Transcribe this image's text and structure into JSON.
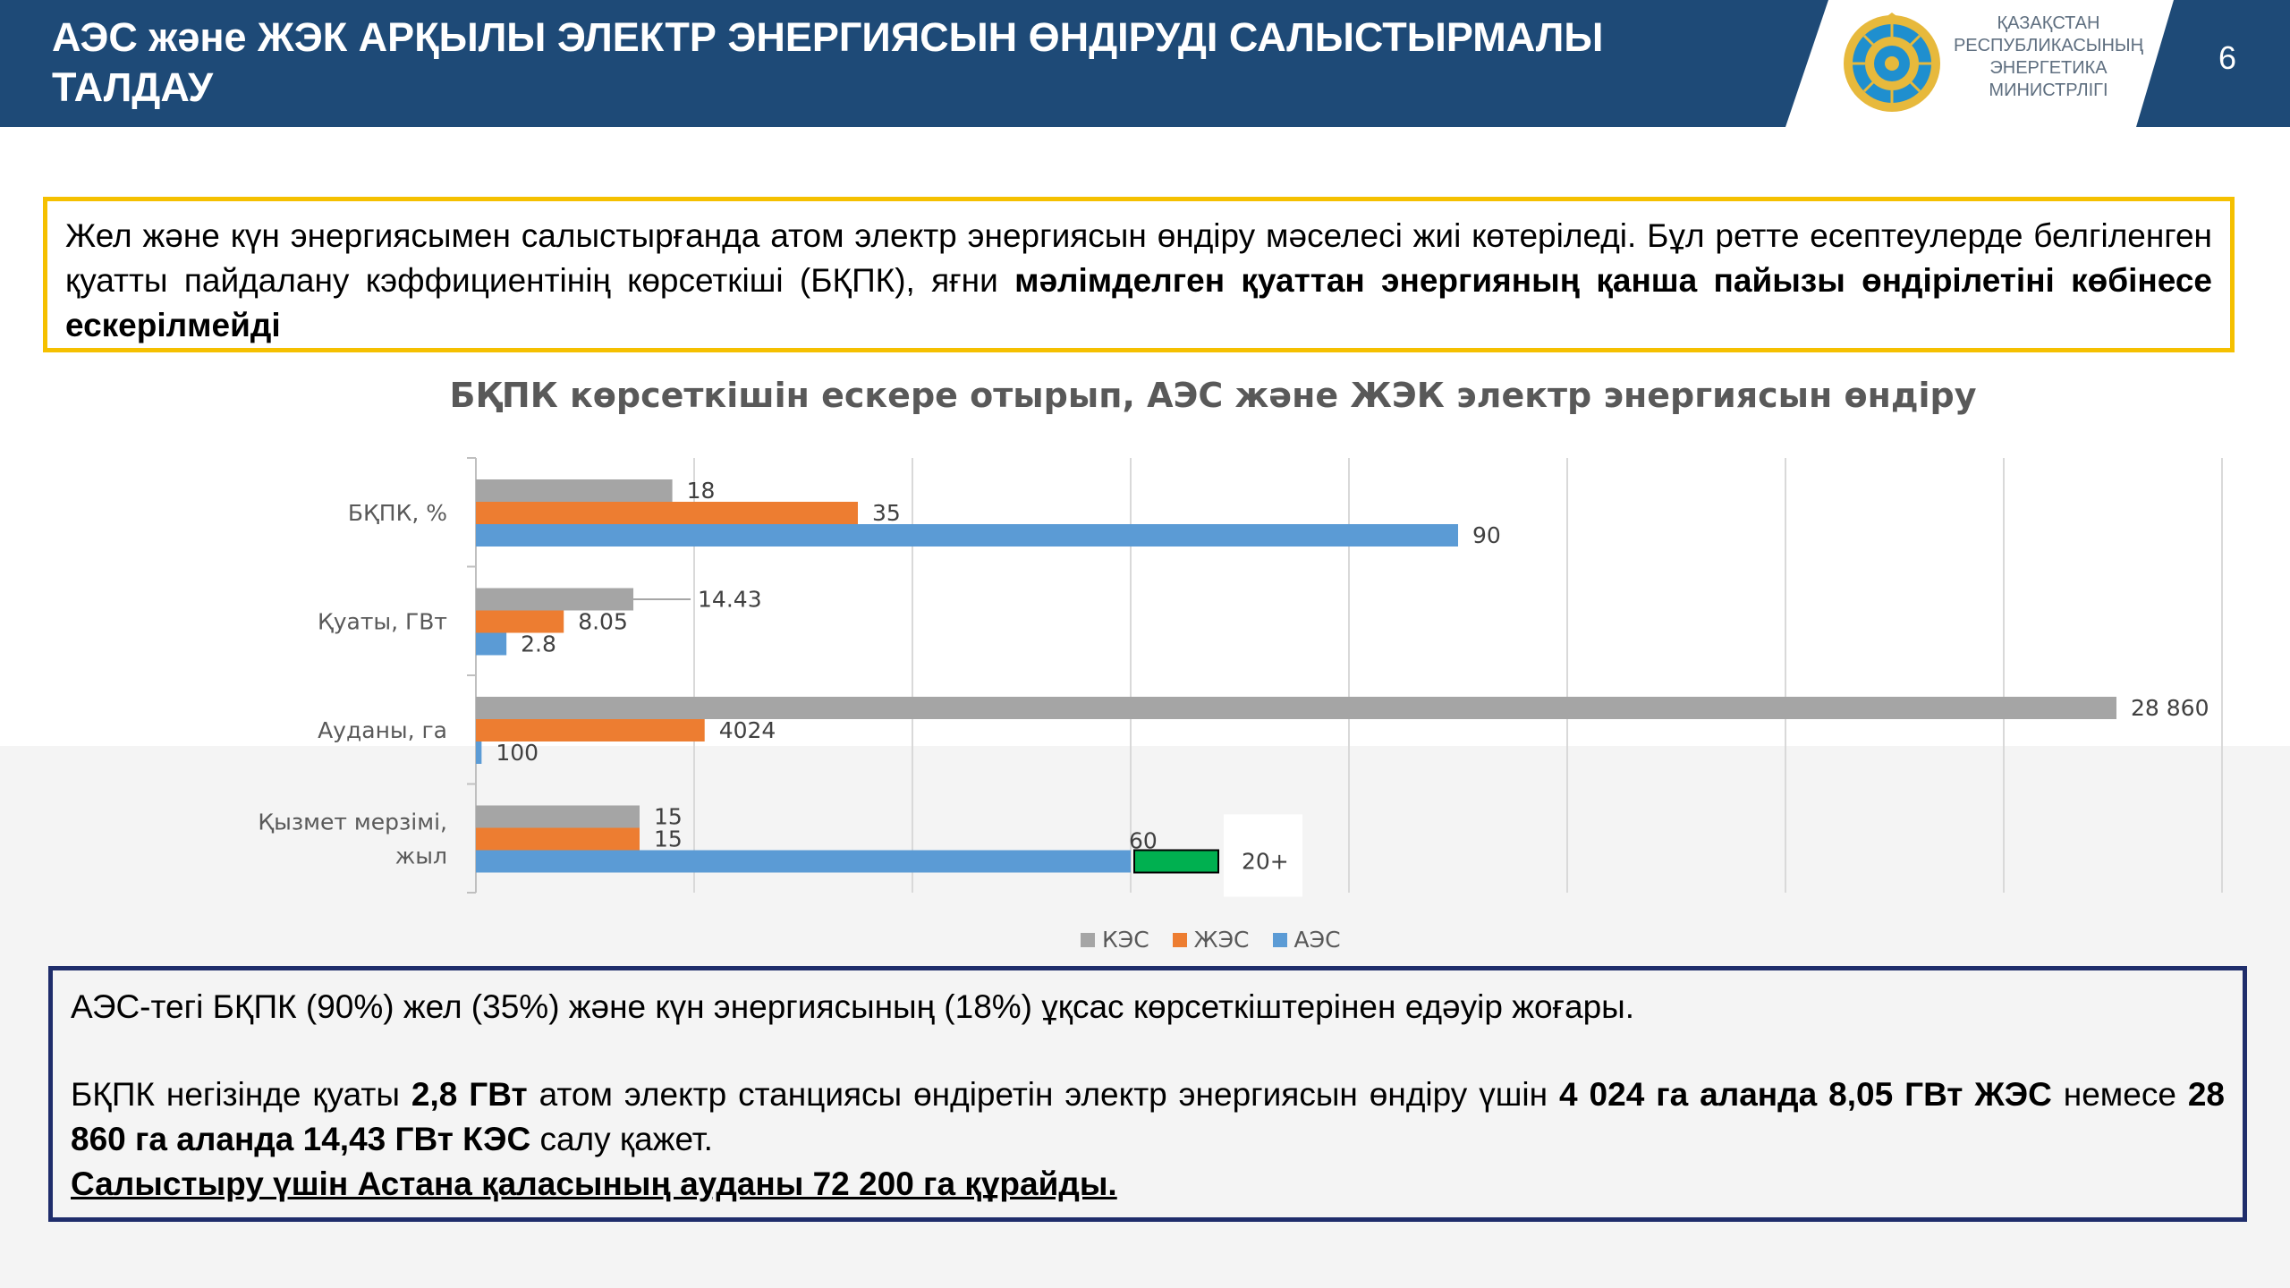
{
  "header": {
    "title_line1": "АЭС және ЖЭК АРҚЫЛЫ ЭЛЕКТР ЭНЕРГИЯСЫН ӨНДІРУДІ САЛЫСТЫРМАЛЫ",
    "title_line2": "ТАЛДАУ",
    "ministry_lines": [
      "ҚАЗАҚСТАН",
      "РЕСПУБЛИКАСЫНЫҢ",
      "ЭНЕРГЕТИКА",
      "МИНИСТРЛІГІ"
    ],
    "page_number": "6",
    "emblem_icon": "kazakhstan-state-emblem",
    "colors": {
      "header_bg": "#1e4a77",
      "accent_yellow": "#f5c000",
      "box_navy": "#1f2d6b"
    }
  },
  "intro": {
    "text_plain": "Жел және күн энергиясымен салыстырғанда атом электр энергиясын өндіру мәселесі жиі көтеріледі. Бұл ретте есептеулерде белгіленген қуатты пайдалану кэффициентінің көрсеткіші (БҚПК), яғни ",
    "text_bold": "мәлімделген қуаттан энергияның қанша пайызы өндірілетіні көбінесе ескерілмейді"
  },
  "chart_data": {
    "type": "bar",
    "orientation": "horizontal",
    "title": "БҚПК көрсеткішін ескере отырып, АЭС және ЖЭК электр энергиясын өндіру",
    "categories": [
      "БҚПК, %",
      "Қуаты, ГВт",
      "Ауданы, га",
      "Қызмет мерзімі, жыл"
    ],
    "series": [
      {
        "name": "КЭС",
        "color": "#a5a5a5",
        "values": [
          18,
          14.43,
          28860,
          15
        ],
        "labels": [
          "18",
          "14.43",
          "28 860",
          "15"
        ]
      },
      {
        "name": "ЖЭС",
        "color": "#ed7d31",
        "values": [
          35,
          8.05,
          4024,
          15
        ],
        "labels": [
          "35",
          "8.05",
          "4024",
          "15"
        ]
      },
      {
        "name": "АЭС",
        "color": "#5b9bd5",
        "values": [
          90,
          2.8,
          100,
          60
        ],
        "labels": [
          "90",
          "2.8",
          "100",
          "60"
        ]
      }
    ],
    "extension": {
      "category": "Қызмет мерзімі, жыл",
      "series": "АЭС",
      "label": "20+",
      "color": "#00b050"
    },
    "grid": true,
    "legend_position": "bottom"
  },
  "summary": {
    "line1": "АЭС-тегі БҚПК (90%) жел (35%) және күн энергиясының (18%) ұқсас көрсеткіштерінен едәуір жоғары.",
    "p2_a": "БҚПК негізінде қуаты ",
    "p2_b": "2,8 ГВт",
    "p2_c": " атом электр станциясы өндіретін электр энергиясын өндіру үшін ",
    "p2_d": "4 024 га аланда 8,05 ГВт ЖЭС",
    "p2_e": " немесе ",
    "p2_f": "28 860 га аланда 14,43 ГВт КЭС",
    "p2_g": " салу қажет.",
    "line3": "Салыстыру үшін Астана қаласының ауданы 72 200 га құрайды."
  }
}
